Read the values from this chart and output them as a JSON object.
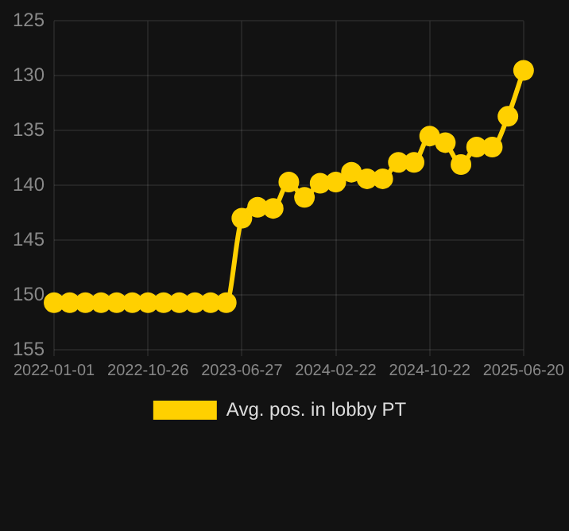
{
  "chart_data": {
    "type": "line",
    "categories": [
      "2022-01-01",
      null,
      null,
      null,
      null,
      null,
      "2022-10-26",
      null,
      null,
      null,
      null,
      null,
      "2023-06-27",
      null,
      null,
      null,
      null,
      null,
      "2024-02-22",
      null,
      null,
      null,
      null,
      null,
      "2024-10-22",
      null,
      null,
      null,
      null,
      null,
      "2025-06-20"
    ],
    "series": [
      {
        "name": "Avg. pos. in lobby PT",
        "color": "#ffd000",
        "values": [
          150.7,
          150.7,
          150.7,
          150.7,
          150.7,
          150.7,
          150.7,
          150.7,
          150.7,
          150.7,
          150.7,
          150.7,
          143.0,
          142.0,
          142.1,
          139.7,
          141.1,
          139.8,
          139.7,
          138.8,
          139.4,
          139.4,
          137.9,
          137.9,
          135.5,
          136.1,
          138.1,
          136.5,
          136.5,
          133.7,
          129.5
        ]
      }
    ],
    "ylim": [
      155,
      125
    ],
    "yticks": [
      125,
      130,
      135,
      140,
      145,
      150,
      155
    ],
    "grid": true,
    "legend": "bottom",
    "marker": "circle",
    "line_style": "solid"
  }
}
